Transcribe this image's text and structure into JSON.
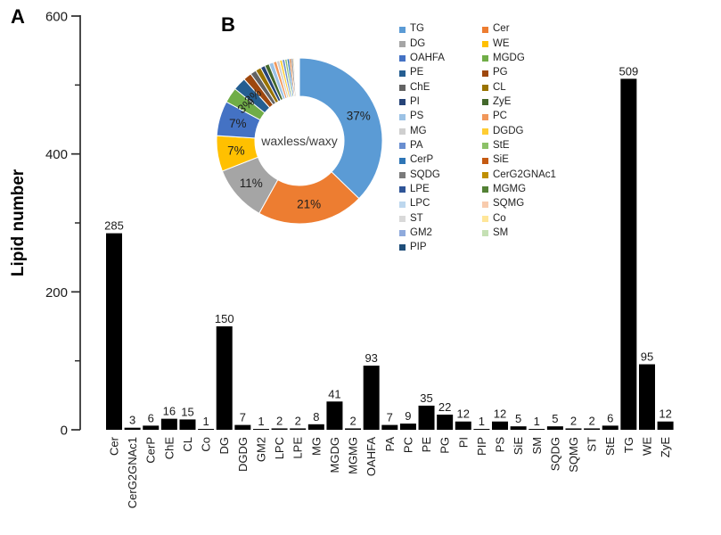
{
  "panels": {
    "a": "A",
    "b": "B"
  },
  "chart_data": [
    {
      "type": "bar",
      "panel": "A",
      "title": "",
      "xlabel": "",
      "ylabel": "Lipid number",
      "ylim": [
        0,
        600
      ],
      "yticks": [
        0,
        200,
        400,
        600
      ],
      "minor_yticks": [
        100,
        300,
        500
      ],
      "bar_color": "#000000",
      "grid": false,
      "categories": [
        "Cer",
        "CerG2GNAc1",
        "CerP",
        "ChE",
        "CL",
        "Co",
        "DG",
        "DGDG",
        "GM2",
        "LPC",
        "LPE",
        "MG",
        "MGDG",
        "MGMG",
        "OAHFA",
        "PA",
        "PC",
        "PE",
        "PG",
        "PI",
        "PIP",
        "PS",
        "SiE",
        "SM",
        "SQDG",
        "SQMG",
        "ST",
        "StE",
        "TG",
        "WE",
        "ZyE"
      ],
      "values": [
        285,
        3,
        6,
        16,
        15,
        1,
        150,
        7,
        1,
        2,
        2,
        8,
        41,
        2,
        93,
        7,
        9,
        35,
        22,
        12,
        1,
        12,
        5,
        1,
        5,
        2,
        2,
        6,
        509,
        95,
        12
      ]
    },
    {
      "type": "pie",
      "panel": "B",
      "donut": true,
      "center_label": "waxless/waxy",
      "legend_position": "right",
      "slices": [
        {
          "name": "TG",
          "value": 509,
          "percent_label": "37%",
          "color": "#5B9BD5"
        },
        {
          "name": "Cer",
          "value": 285,
          "percent_label": "21%",
          "color": "#ED7D31"
        },
        {
          "name": "DG",
          "value": 150,
          "percent_label": "11%",
          "color": "#A5A5A5"
        },
        {
          "name": "WE",
          "value": 95,
          "percent_label": "7%",
          "color": "#FFC000"
        },
        {
          "name": "OAHFA",
          "value": 93,
          "percent_label": "7%",
          "color": "#4472C4"
        },
        {
          "name": "MGDG",
          "value": 41,
          "percent_label": "3%",
          "color": "#70AD47"
        },
        {
          "name": "PE",
          "value": 35,
          "percent_label": "3%",
          "color": "#255E91"
        },
        {
          "name": "PG",
          "value": 22,
          "percent_label": "",
          "color": "#9E480E"
        },
        {
          "name": "ChE",
          "value": 16,
          "percent_label": "",
          "color": "#636363"
        },
        {
          "name": "CL",
          "value": 15,
          "percent_label": "",
          "color": "#997300"
        },
        {
          "name": "PI",
          "value": 12,
          "percent_label": "",
          "color": "#264478"
        },
        {
          "name": "ZyE",
          "value": 12,
          "percent_label": "",
          "color": "#43682B"
        },
        {
          "name": "PS",
          "value": 12,
          "percent_label": "",
          "color": "#9CC2E5"
        },
        {
          "name": "PC",
          "value": 9,
          "percent_label": "",
          "color": "#F1975A"
        },
        {
          "name": "MG",
          "value": 8,
          "percent_label": "",
          "color": "#CFCFCF"
        },
        {
          "name": "DGDG",
          "value": 7,
          "percent_label": "",
          "color": "#FFCD33"
        },
        {
          "name": "PA",
          "value": 7,
          "percent_label": "",
          "color": "#698ED0"
        },
        {
          "name": "StE",
          "value": 6,
          "percent_label": "",
          "color": "#8CC168"
        },
        {
          "name": "CerP",
          "value": 6,
          "percent_label": "",
          "color": "#2E75B6"
        },
        {
          "name": "SiE",
          "value": 5,
          "percent_label": "",
          "color": "#C55A11"
        },
        {
          "name": "SQDG",
          "value": 5,
          "percent_label": "",
          "color": "#7B7B7B"
        },
        {
          "name": "CerG2GNAc1",
          "value": 3,
          "percent_label": "",
          "color": "#BF8F00"
        },
        {
          "name": "LPE",
          "value": 2,
          "percent_label": "",
          "color": "#2F5597"
        },
        {
          "name": "MGMG",
          "value": 2,
          "percent_label": "",
          "color": "#538135"
        },
        {
          "name": "LPC",
          "value": 2,
          "percent_label": "",
          "color": "#BDD7EE"
        },
        {
          "name": "SQMG",
          "value": 2,
          "percent_label": "",
          "color": "#F8CBAD"
        },
        {
          "name": "ST",
          "value": 2,
          "percent_label": "",
          "color": "#D9D9D9"
        },
        {
          "name": "Co",
          "value": 1,
          "percent_label": "",
          "color": "#FFE699"
        },
        {
          "name": "GM2",
          "value": 1,
          "percent_label": "",
          "color": "#8FAADC"
        },
        {
          "name": "SM",
          "value": 1,
          "percent_label": "",
          "color": "#C5E0B4"
        },
        {
          "name": "PIP",
          "value": 1,
          "percent_label": "",
          "color": "#1F4E79"
        }
      ],
      "legend_columns": [
        [
          "TG",
          "DG",
          "OAHFA",
          "PE",
          "ChE",
          "PI",
          "PS",
          "MG",
          "PA",
          "CerP",
          "SQDG",
          "LPE",
          "LPC",
          "ST",
          "GM2",
          "PIP"
        ],
        [
          "Cer",
          "WE",
          "MGDG",
          "PG",
          "CL",
          "ZyE",
          "PC",
          "DGDG",
          "StE",
          "SiE",
          "CerG2GNAc1",
          "MGMG",
          "SQMG",
          "Co",
          "SM"
        ]
      ]
    }
  ]
}
